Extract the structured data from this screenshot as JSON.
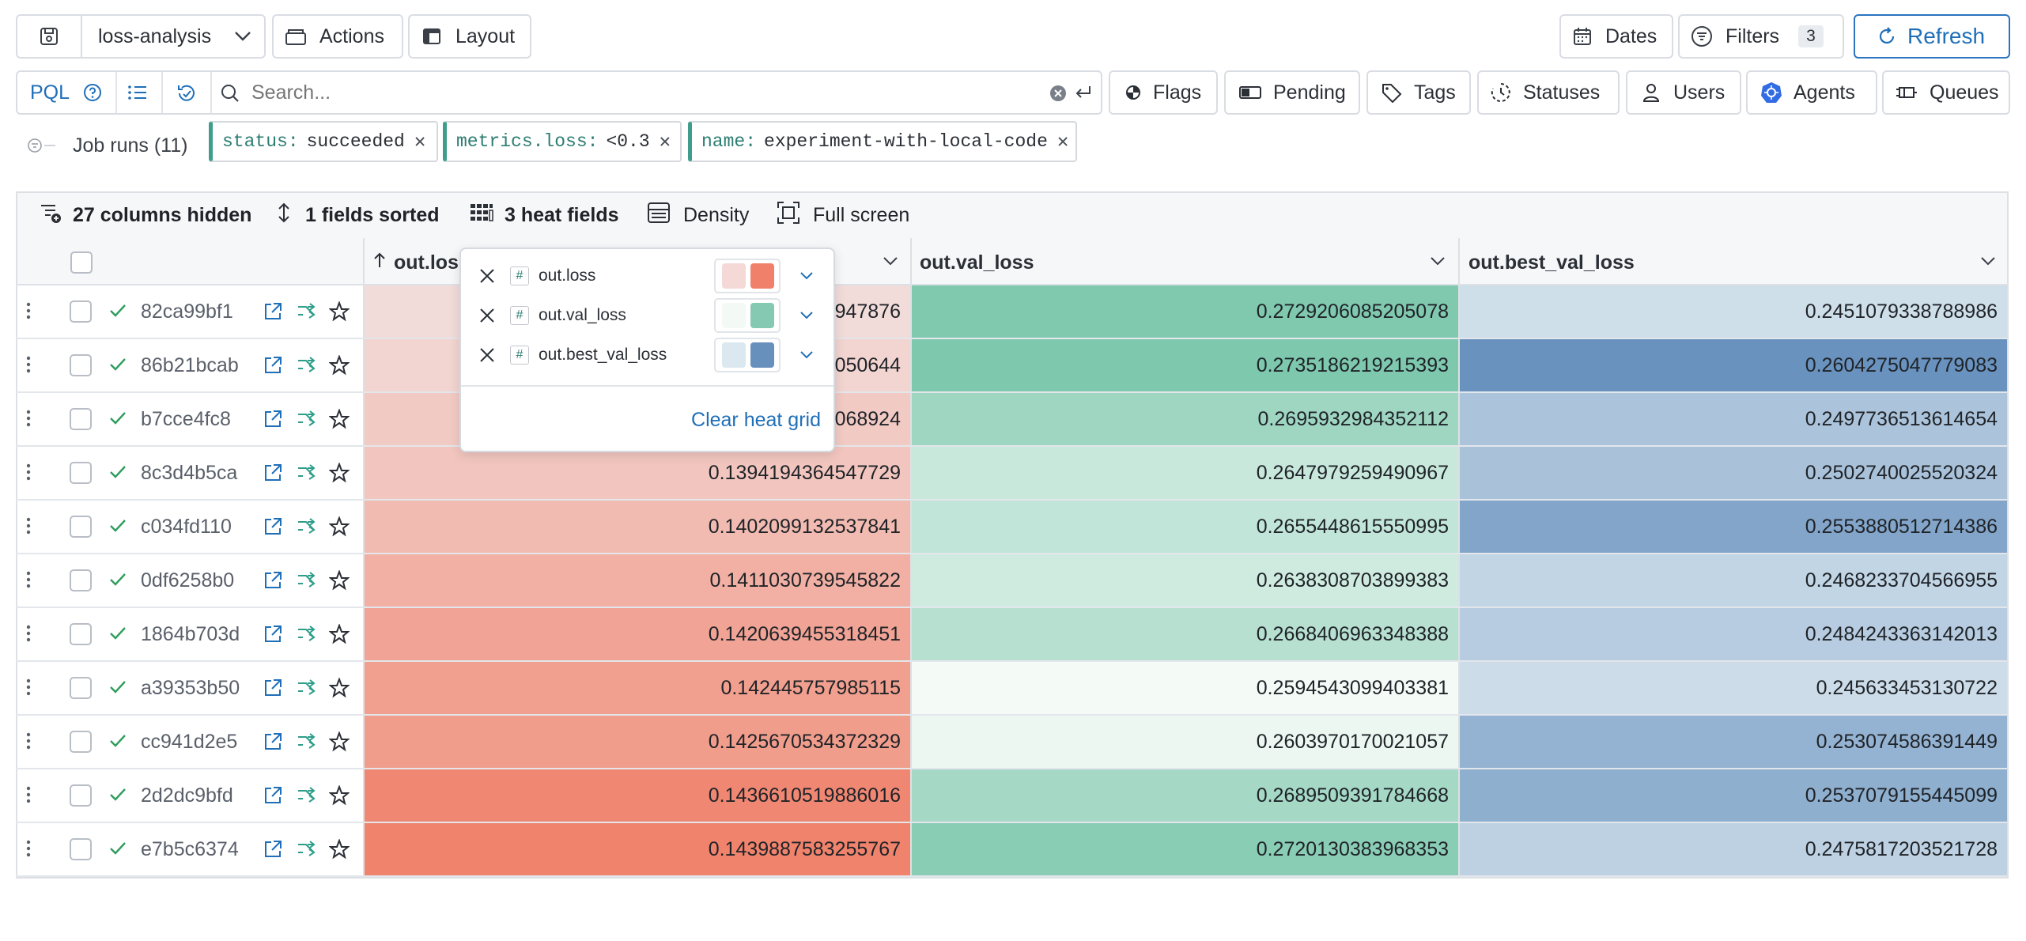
{
  "toolbar": {
    "project": "loss-analysis",
    "actions_label": "Actions",
    "layout_label": "Layout",
    "dates_label": "Dates",
    "filters_label": "Filters",
    "filters_count": "3",
    "refresh_label": "Refresh"
  },
  "search": {
    "mode": "PQL",
    "placeholder": "Search...",
    "chips": [
      "Flags",
      "Pending",
      "Tags",
      "Statuses",
      "Users",
      "Agents",
      "Queues"
    ]
  },
  "filters": {
    "title": "Job runs (11)",
    "chips": [
      {
        "key": "status:",
        "value": "succeeded"
      },
      {
        "key": "metrics.loss:",
        "value": "<0.3"
      },
      {
        "key": "name:",
        "value": "experiment-with-local-code"
      }
    ]
  },
  "table_toolbar": {
    "hidden": "27 columns hidden",
    "sorted": "1 fields sorted",
    "heat": "3 heat fields",
    "density": "Density",
    "fullscreen": "Full screen"
  },
  "columns": [
    "out.loss",
    "out.val_loss",
    "out.best_val_loss"
  ],
  "heat_popover": {
    "fields": [
      {
        "name": "out.loss",
        "from": "#f4d9d6",
        "to": "#f0806a"
      },
      {
        "name": "out.val_loss",
        "from": "#f3faf6",
        "to": "#86c9b2"
      },
      {
        "name": "out.best_val_loss",
        "from": "#dce8f0",
        "to": "#6890bd"
      }
    ],
    "clear_label": "Clear heat grid"
  },
  "colors": {
    "accent": "#1f6fb8",
    "loss_low": "#f2dcda",
    "loss_high": "#f0836c",
    "val_low": "#f4fbf7",
    "val_high": "#7ec8ae",
    "best_low": "#dde9f0",
    "best_high": "#6992be"
  },
  "rows": [
    {
      "id": "82ca99bf1",
      "loss": "0.1370543580947876",
      "val_loss": "0.2729206085205078",
      "best_val_loss": "0.2451079338788986",
      "loss_shown": "947876",
      "h_loss": 0.0,
      "h_val": 0.98,
      "h_best": 0.12
    },
    {
      "id": "86b21bcab",
      "loss": "0.1377090513050644",
      "val_loss": "0.2735186219215393",
      "best_val_loss": "0.2604275047779083",
      "loss_shown": "050644",
      "h_loss": 0.09,
      "h_val": 1.0,
      "h_best": 1.0
    },
    {
      "id": "b7cce4fc8",
      "loss": "0.1389135121068924",
      "val_loss": "0.2695932984352112",
      "best_val_loss": "0.2497736513614654",
      "loss_shown": "068924",
      "h_loss": 0.2,
      "h_val": 0.72,
      "h_best": 0.42
    },
    {
      "id": "8c3d4b5ca",
      "loss": "0.1394194364547729",
      "val_loss": "0.2647979259490967",
      "best_val_loss": "0.2502740025520324",
      "h_loss": 0.25,
      "h_val": 0.38,
      "h_best": 0.45
    },
    {
      "id": "c034fd110",
      "loss": "0.1402099132537841",
      "val_loss": "0.2655448615550995",
      "best_val_loss": "0.2553880512714386",
      "h_loss": 0.37,
      "h_val": 0.43,
      "h_best": 0.78
    },
    {
      "id": "0df6258b0",
      "loss": "0.1411030739545822",
      "val_loss": "0.2638308703899383",
      "best_val_loss": "0.2468233704566955",
      "h_loss": 0.5,
      "h_val": 0.31,
      "h_best": 0.23
    },
    {
      "id": "1864b703d",
      "loss": "0.1420639455318451",
      "val_loss": "0.2668406963348388",
      "best_val_loss": "0.2484243363142013",
      "h_loss": 0.63,
      "h_val": 0.52,
      "h_best": 0.33
    },
    {
      "id": "a39353b50",
      "loss": "0.142445757985115",
      "val_loss": "0.2594543099403381",
      "best_val_loss": "0.245633453130722",
      "h_loss": 0.69,
      "h_val": 0.0,
      "h_best": 0.15
    },
    {
      "id": "cc941d2e5",
      "loss": "0.1425670534372329",
      "val_loss": "0.2603970170021057",
      "best_val_loss": "0.253074586391449",
      "h_loss": 0.71,
      "h_val": 0.07,
      "h_best": 0.63
    },
    {
      "id": "2d2dc9bfd",
      "loss": "0.1436610519886016",
      "val_loss": "0.2689509391784668",
      "best_val_loss": "0.2537079155445099",
      "h_loss": 0.95,
      "h_val": 0.67,
      "h_best": 0.67
    },
    {
      "id": "e7b5c6374",
      "loss": "0.1439887583255767",
      "val_loss": "0.2720130383968353",
      "best_val_loss": "0.2475817203521728",
      "h_loss": 1.0,
      "h_val": 0.9,
      "h_best": 0.28
    }
  ]
}
